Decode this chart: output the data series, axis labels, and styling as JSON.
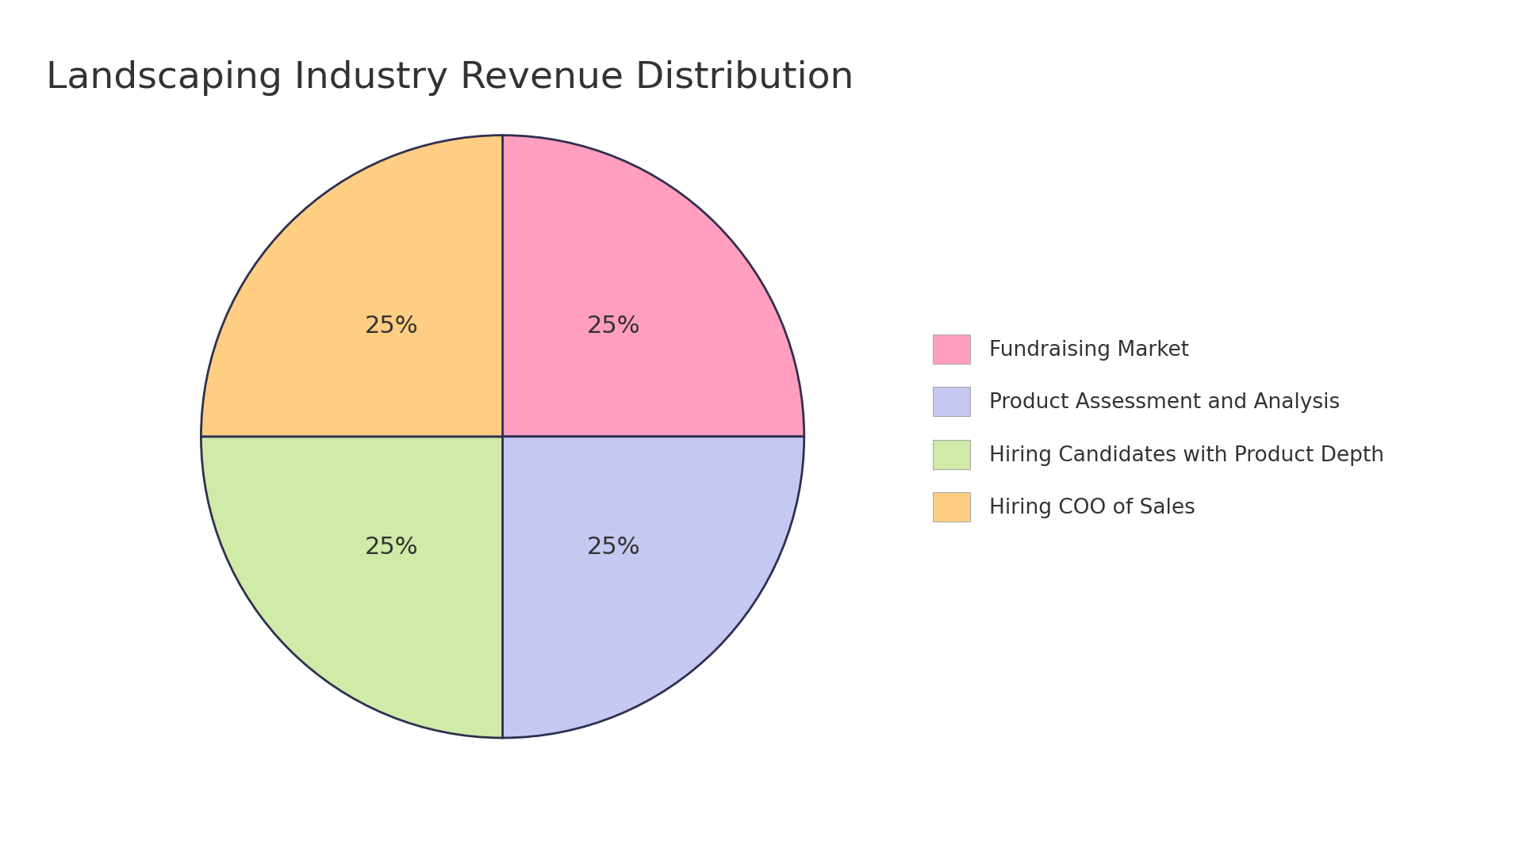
{
  "title": "Landscaping Industry Revenue Distribution",
  "labels": [
    "Fundraising Market",
    "Product Assessment and Analysis",
    "Hiring Candidates with Product Depth",
    "Hiring COO of Sales"
  ],
  "values": [
    25,
    25,
    25,
    25
  ],
  "colors": [
    "#FF9EBF",
    "#C5C8F0",
    "#D0EAA8",
    "#FFCE82"
  ],
  "edge_color": "#2E3050",
  "edge_width": 2.0,
  "pct_labels": [
    "25%",
    "25%",
    "25%",
    "25%"
  ],
  "startangle": 90,
  "background_color": "#FFFFFF",
  "title_fontsize": 34,
  "pct_fontsize": 22,
  "legend_fontsize": 19,
  "text_color": "#333333",
  "legend_handle_size": 0.06
}
